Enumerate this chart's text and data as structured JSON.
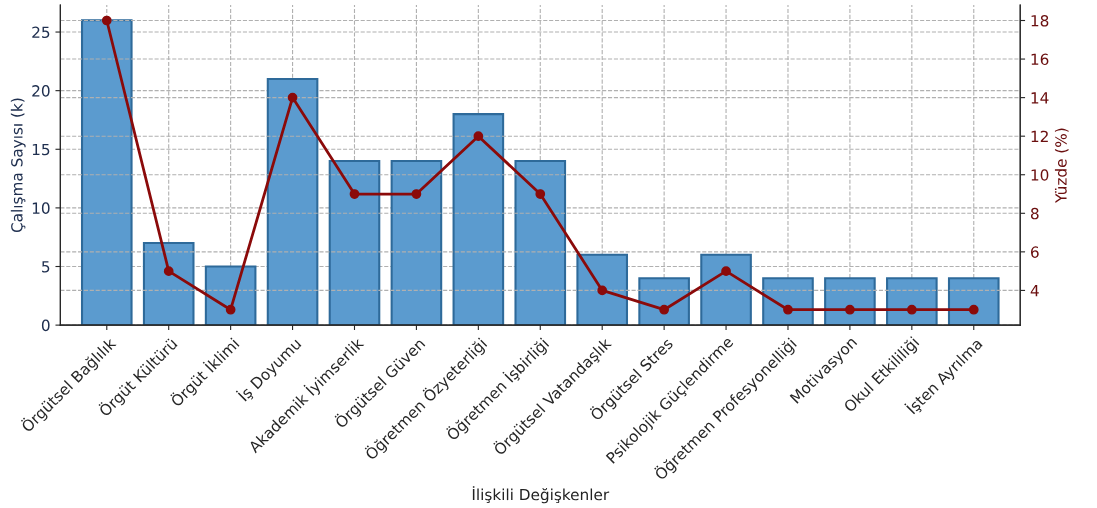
{
  "chart_data": {
    "type": "bar",
    "xlabel": "İlişkili Değişkenler",
    "ylabel": "Çalışma Sayısı (k)",
    "y2label": "Yüzde (%)",
    "categories": [
      "Örgütsel Bağlılık",
      "Örgüt Kültürü",
      "Örgüt İklimi",
      "İş Doyumu",
      "Akademik İyimserlik",
      "Örgütsel Güven",
      "Öğretmen Özyeterliği",
      "Öğretmen İşbirliği",
      "Örgütsel Vatandaşlık",
      "Örgütsel Stres",
      "Psikolojik Güçlendirme",
      "Öğretmen Profesyonelliği",
      "Motivasyon",
      "Okul Etkililiği",
      "İşten Ayrılma"
    ],
    "series": [
      {
        "color": "#5b9bcf",
        "values": [
          26,
          7,
          5,
          21,
          14,
          14,
          18,
          14,
          6,
          4,
          6,
          4,
          4,
          4,
          4
        ]
      },
      {
        "type": "line",
        "axis": "y2",
        "color": "#8b0a0a",
        "marker": "circle",
        "values": [
          18,
          5,
          3,
          14,
          9,
          9,
          12,
          9,
          4,
          3,
          5,
          3,
          3,
          3,
          3
        ]
      }
    ],
    "ylim": [
      0,
      27.3
    ],
    "yticks": [
      0,
      5,
      10,
      15,
      20,
      25
    ],
    "y2lim": [
      2.2,
      18.8
    ],
    "y2ticks": [
      4,
      6,
      8,
      10,
      12,
      14,
      16,
      18
    ],
    "grid": true
  }
}
